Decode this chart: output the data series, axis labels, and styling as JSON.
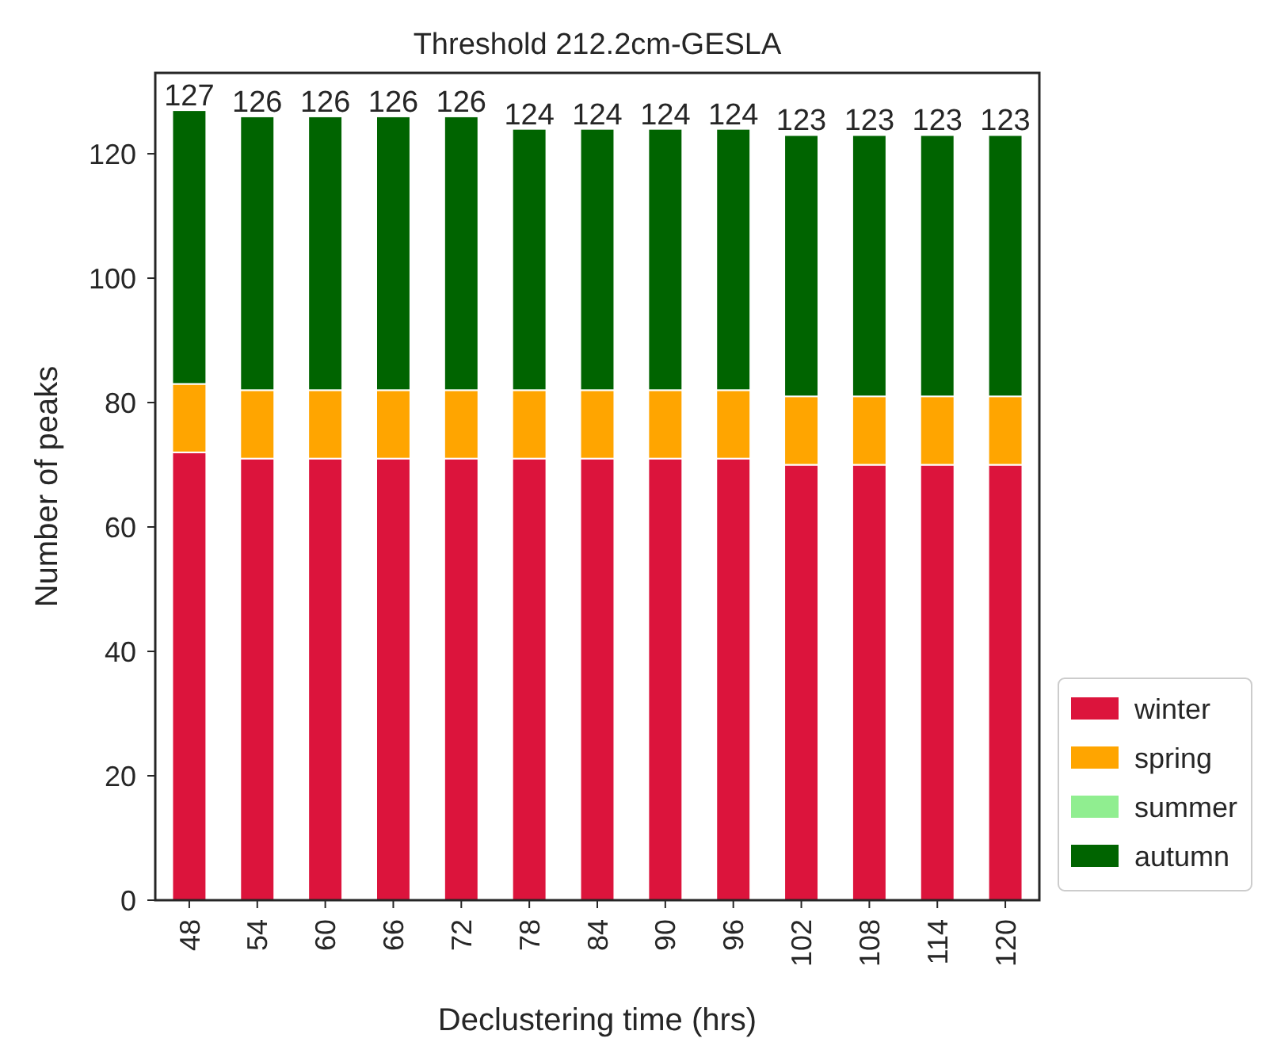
{
  "chart_data": {
    "type": "bar",
    "title": "Threshold 212.2cm-GESLA",
    "xlabel": "Declustering time (hrs)",
    "ylabel": "Number of peaks",
    "categories": [
      "48",
      "54",
      "60",
      "66",
      "72",
      "78",
      "84",
      "90",
      "96",
      "102",
      "108",
      "114",
      "120"
    ],
    "stacked": true,
    "series": [
      {
        "name": "winter",
        "color": "#dc143c",
        "values": [
          72,
          71,
          71,
          71,
          71,
          71,
          71,
          71,
          71,
          70,
          70,
          70,
          70
        ]
      },
      {
        "name": "spring",
        "color": "#ffa500",
        "values": [
          11,
          11,
          11,
          11,
          11,
          11,
          11,
          11,
          11,
          11,
          11,
          11,
          11
        ]
      },
      {
        "name": "summer",
        "color": "#90ee90",
        "values": [
          0,
          0,
          0,
          0,
          0,
          0,
          0,
          0,
          0,
          0,
          0,
          0,
          0
        ]
      },
      {
        "name": "autumn",
        "color": "#006400",
        "values": [
          44,
          44,
          44,
          44,
          44,
          42,
          42,
          42,
          42,
          42,
          42,
          42,
          42
        ]
      }
    ],
    "totals": [
      "127",
      "126",
      "126",
      "126",
      "126",
      "124",
      "124",
      "124",
      "124",
      "123",
      "123",
      "123",
      "123"
    ],
    "ylim": [
      0,
      133
    ],
    "yticks": [
      0,
      20,
      40,
      60,
      80,
      100,
      120
    ],
    "grid": false,
    "legend": "right"
  }
}
